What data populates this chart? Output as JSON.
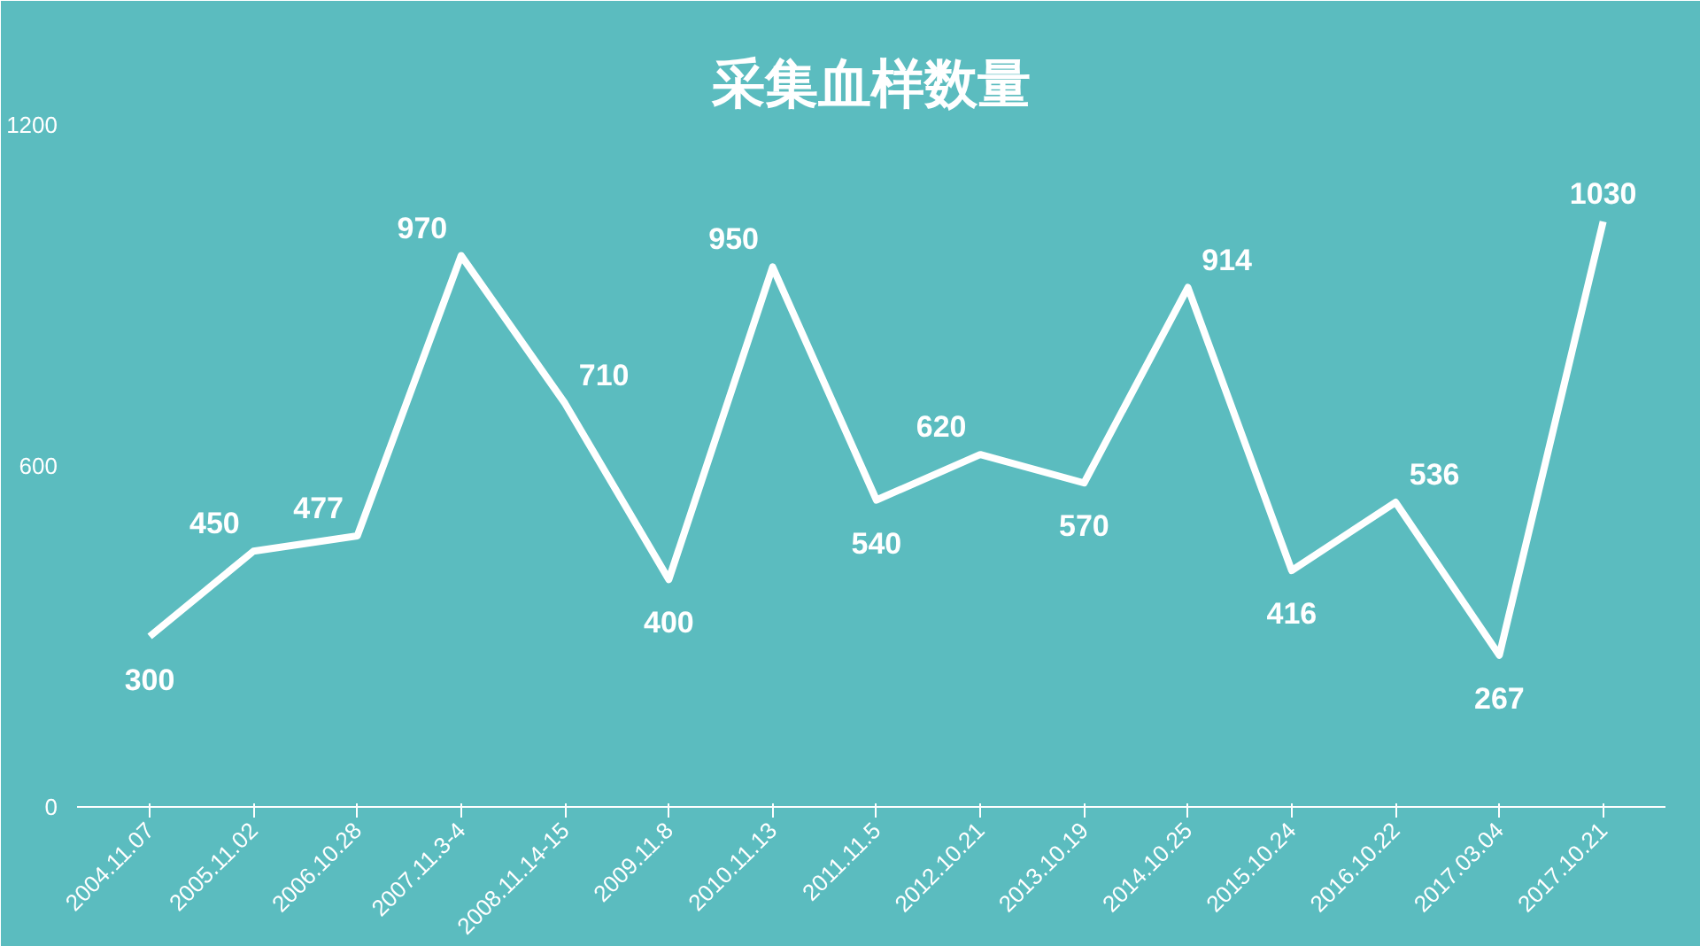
{
  "chart_data": {
    "type": "line",
    "title": "采集血样数量",
    "categories": [
      "2004.11.07",
      "2005.11.02",
      "2006.10.28",
      "2007.11.3-4",
      "2008.11.14-15",
      "2009.11.8",
      "2010.11.13",
      "2011.11.5",
      "2012.10.21",
      "2013.10.19",
      "2014.10.25",
      "2015.10.24",
      "2016.10.22",
      "2017.03.04",
      "2017.10.21"
    ],
    "series": [
      {
        "color": "#ffffff",
        "values": [
          300,
          450,
          477,
          970,
          710,
          400,
          950,
          540,
          620,
          570,
          914,
          416,
          536,
          267,
          1030
        ]
      }
    ],
    "ylim": [
      0,
      1200
    ],
    "yticks": [
      0,
      600,
      1200
    ],
    "data_labels": true,
    "grid": false,
    "marker": "none",
    "line_style": "solid"
  }
}
